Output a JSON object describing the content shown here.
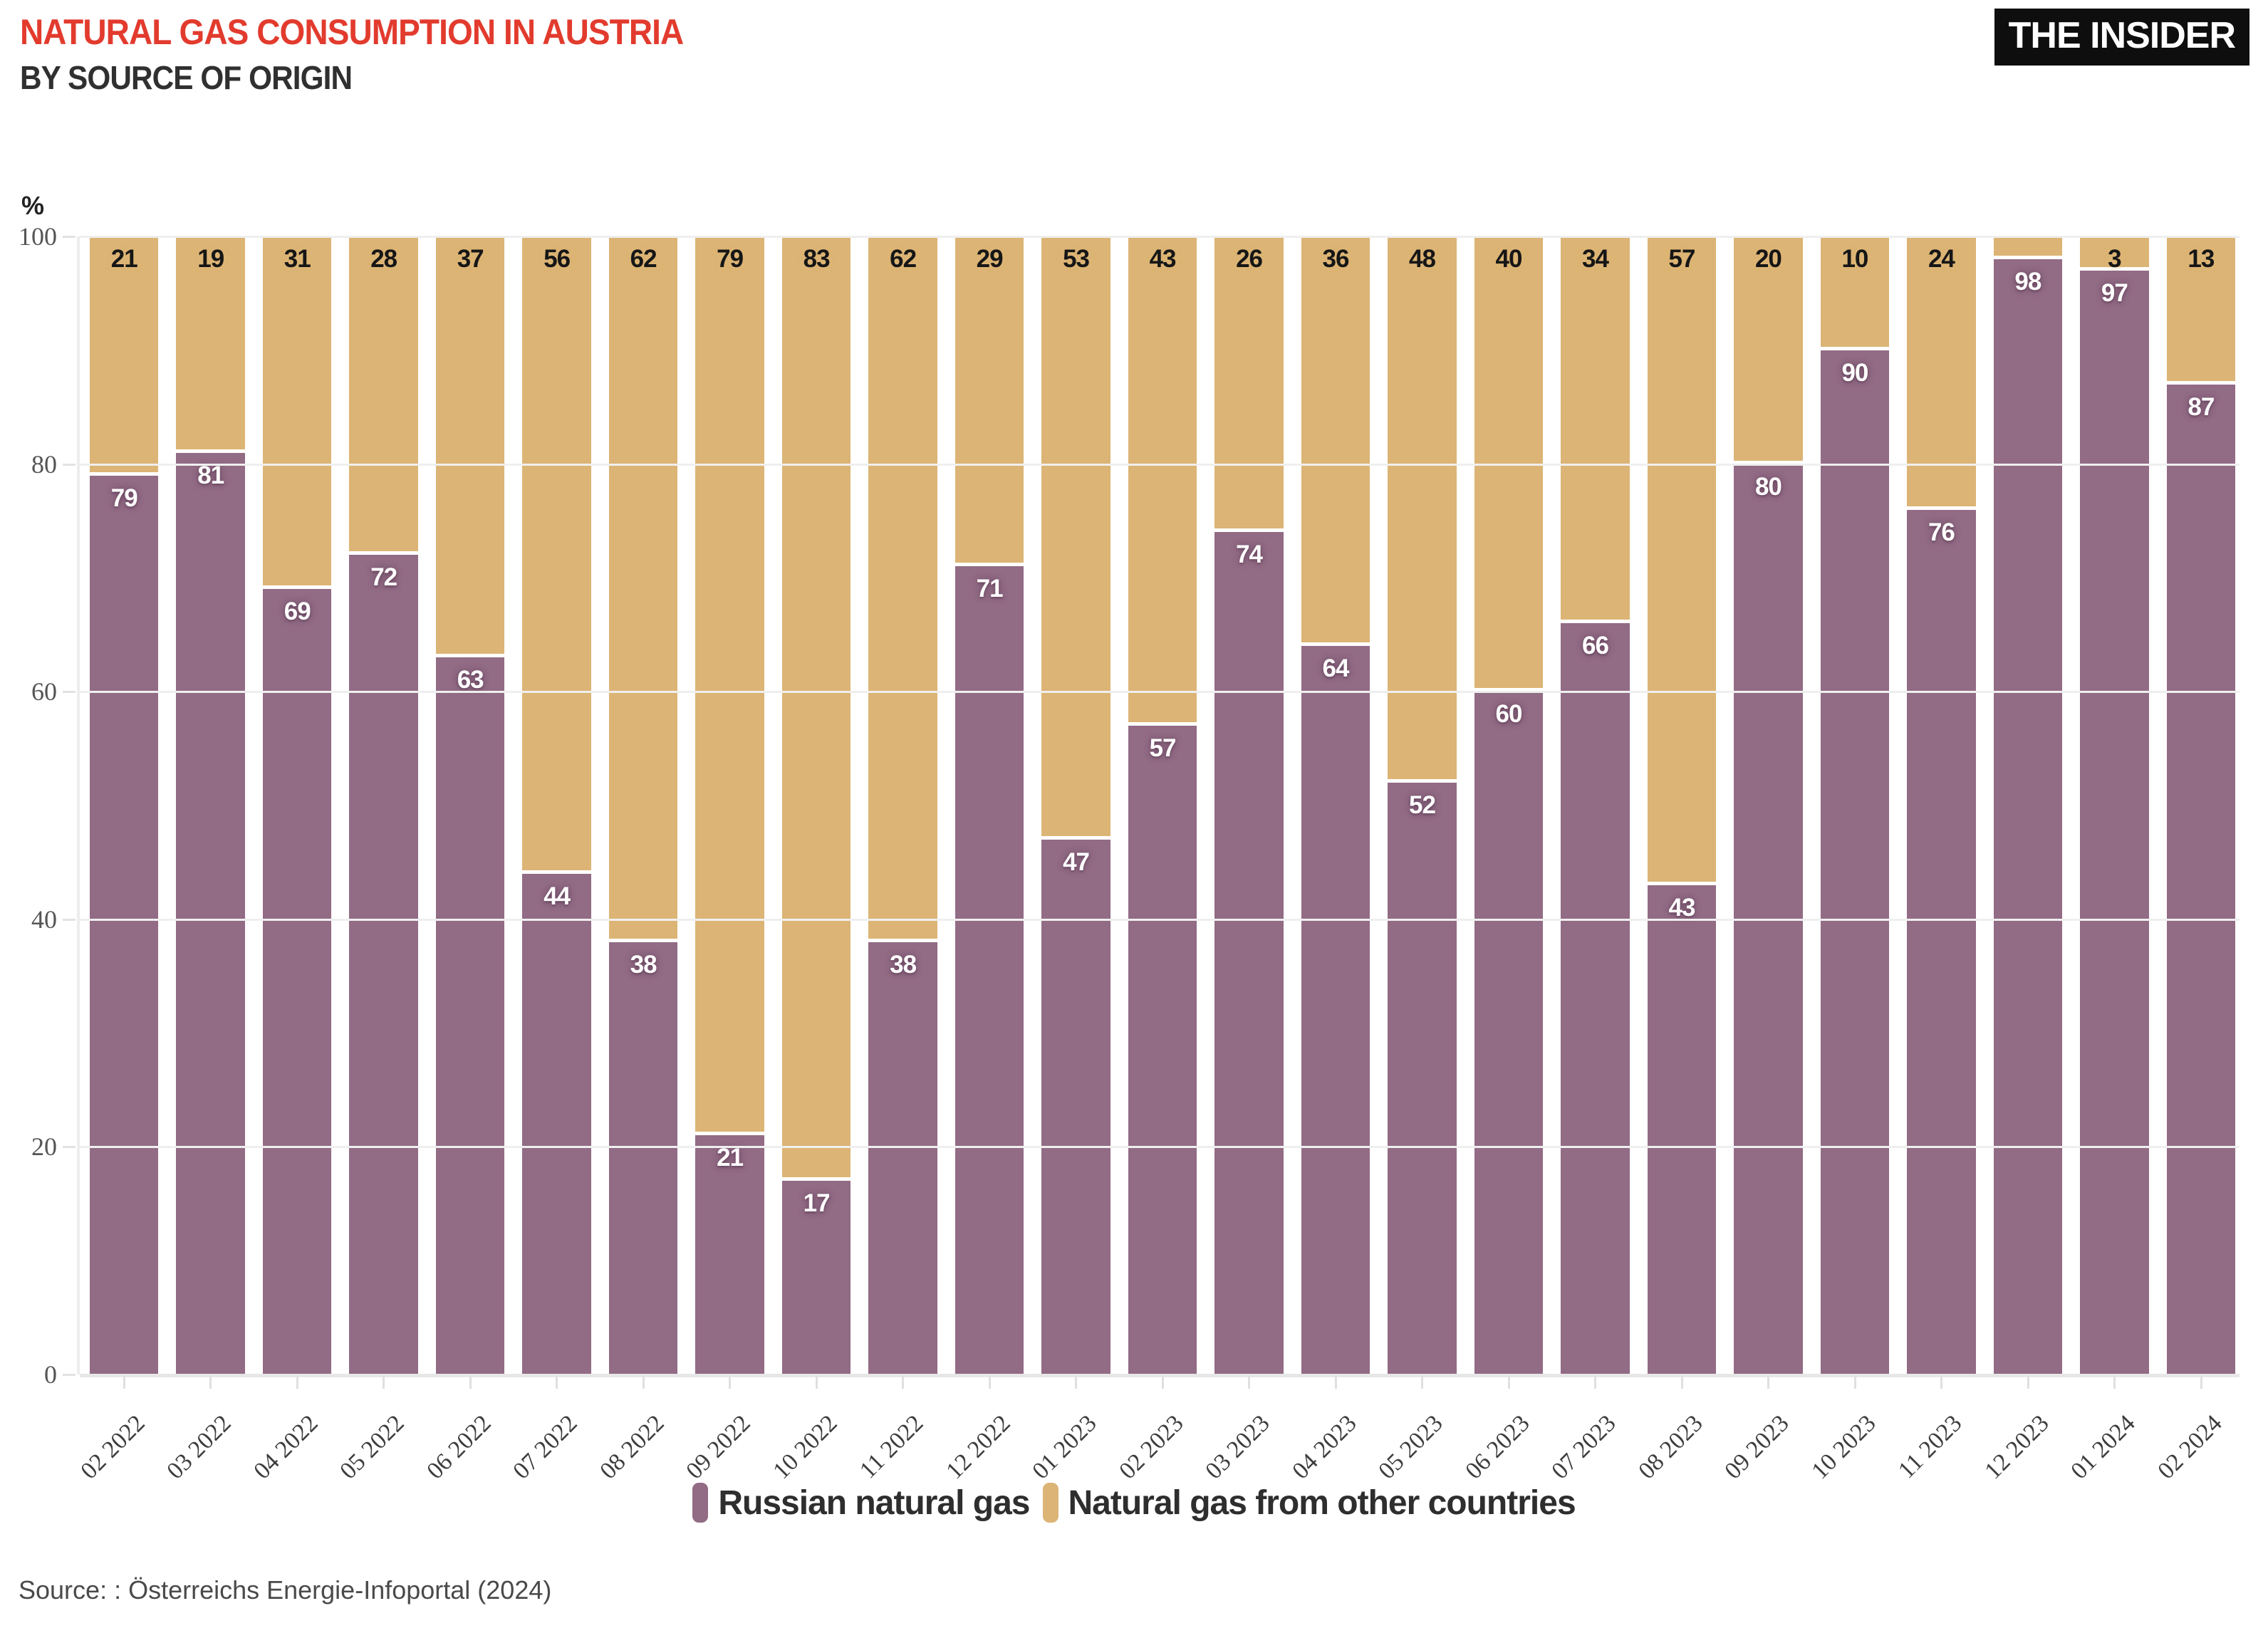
{
  "header": {
    "title": "NATURAL GAS CONSUMPTION IN AUSTRIA",
    "subtitle": "BY SOURCE OF ORIGIN",
    "logo_text": "THE INSIDER"
  },
  "axis": {
    "unit": "%",
    "yticks": [
      0,
      20,
      40,
      60,
      80,
      100
    ]
  },
  "chart_data": {
    "type": "bar",
    "stacked": true,
    "title": "NATURAL GAS CONSUMPTION IN AUSTRIA",
    "subtitle": "BY SOURCE OF ORIGIN",
    "ylabel": "%",
    "ylim": [
      0,
      100
    ],
    "grid": true,
    "legend_position": "bottom",
    "categories": [
      "02 2022",
      "03 2022",
      "04 2022",
      "05 2022",
      "06 2022",
      "07 2022",
      "08 2022",
      "09 2022",
      "10 2022",
      "11 2022",
      "12 2022",
      "01 2023",
      "02 2023",
      "03 2023",
      "04 2023",
      "05 2023",
      "06 2023",
      "07 2023",
      "08 2023",
      "09 2023",
      "10 2023",
      "11 2023",
      "12 2023",
      "01 2024",
      "02 2024"
    ],
    "series": [
      {
        "name": "Russian natural gas",
        "color": "#926b85",
        "values": [
          79,
          81,
          69,
          72,
          63,
          44,
          38,
          21,
          17,
          38,
          71,
          47,
          57,
          74,
          64,
          52,
          60,
          66,
          43,
          80,
          90,
          76,
          98,
          97,
          87
        ],
        "value_labels": [
          "79",
          "81",
          "69",
          "72",
          "63",
          "44",
          "38",
          "21",
          "17",
          "38",
          "71",
          "47",
          "57",
          "74",
          "64",
          "52",
          "60",
          "66",
          "43",
          "80",
          "90",
          "76",
          "98",
          "97",
          "87"
        ]
      },
      {
        "name": "Natural gas from other countries",
        "color": "#dcb475",
        "values": [
          21,
          19,
          31,
          28,
          37,
          56,
          62,
          79,
          83,
          62,
          29,
          53,
          43,
          26,
          36,
          48,
          40,
          34,
          57,
          20,
          10,
          24,
          2,
          3,
          13
        ],
        "value_labels": [
          "21",
          "19",
          "31",
          "28",
          "37",
          "56",
          "62",
          "79",
          "83",
          "62",
          "29",
          "53",
          "43",
          "26",
          "36",
          "48",
          "40",
          "34",
          "57",
          "20",
          "10",
          "24",
          "",
          "3",
          "13"
        ]
      }
    ]
  },
  "legend": {
    "items": [
      {
        "label": "Russian natural gas",
        "color": "#926b85"
      },
      {
        "label": "Natural gas from other countries",
        "color": "#dcb475"
      }
    ]
  },
  "source": "Source: : Österreichs Energie-Infoportal (2024)"
}
